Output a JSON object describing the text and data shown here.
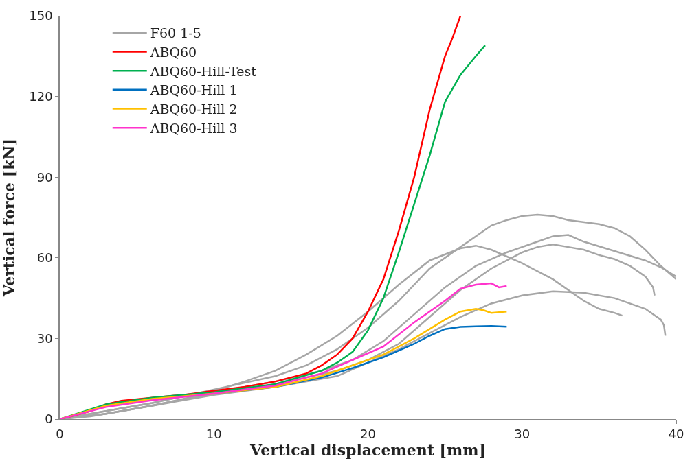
{
  "chart_data": {
    "type": "line",
    "xlabel": "Vertical displacement [mm]",
    "ylabel": "Vertical force [kN]",
    "xlim": [
      0,
      40
    ],
    "ylim": [
      0,
      150
    ],
    "xticks": [
      0,
      10,
      20,
      30,
      40
    ],
    "yticks": [
      0,
      30,
      60,
      90,
      120,
      150
    ],
    "legend": "top left",
    "marker": "none",
    "line_style": "solid",
    "series": [
      {
        "name": "F60 1-5",
        "color": "#a6a6a6",
        "x": [
          0,
          2,
          4,
          6,
          8,
          10,
          12,
          14,
          16,
          18,
          20,
          22,
          24,
          26,
          27,
          28,
          30,
          32,
          34,
          35,
          36,
          36.5
        ],
        "values": [
          0,
          2,
          4,
          6,
          8.5,
          10.5,
          14,
          18,
          24,
          31,
          40,
          50,
          59,
          63.5,
          64.5,
          63,
          58,
          52,
          44,
          41,
          39.5,
          38.5
        ]
      },
      {
        "color": "#a6a6a6",
        "x": [
          0,
          3,
          6,
          10,
          14,
          16,
          18,
          20,
          22,
          24,
          26,
          27,
          28,
          29,
          30,
          31,
          32,
          33,
          35,
          36,
          37,
          38,
          39,
          40
        ],
        "values": [
          0,
          3,
          6,
          11,
          16,
          20,
          26,
          34,
          44,
          56,
          64,
          68,
          72,
          74,
          75.5,
          76,
          75.5,
          74,
          72.5,
          71,
          68,
          63,
          57,
          52
        ]
      },
      {
        "color": "#a6a6a6",
        "x": [
          0,
          3,
          6,
          10,
          14,
          17,
          19,
          21,
          23,
          25,
          27,
          29,
          30,
          31,
          32,
          33,
          34,
          36,
          38,
          39,
          40
        ],
        "values": [
          0,
          2,
          5,
          10,
          14,
          18,
          22,
          29,
          39,
          49,
          57,
          62,
          64,
          66,
          68,
          68.5,
          66,
          62.5,
          59,
          56.5,
          53
        ]
      },
      {
        "color": "#a6a6a6",
        "x": [
          0,
          2,
          5,
          10,
          14,
          18,
          20,
          22,
          24,
          26,
          28,
          30,
          31,
          32,
          33,
          34,
          35,
          36,
          37,
          38,
          38.5,
          38.6
        ],
        "values": [
          0,
          1,
          4,
          9.5,
          13,
          18,
          22,
          28,
          38,
          48,
          56,
          62,
          64,
          65,
          64,
          63,
          61,
          59.5,
          57,
          53,
          49,
          46
        ]
      },
      {
        "color": "#a6a6a6",
        "x": [
          0,
          3,
          6,
          10,
          14,
          18,
          20,
          22,
          24,
          26,
          28,
          30,
          32,
          34,
          36,
          38,
          39,
          39.2,
          39.3
        ],
        "values": [
          0,
          2,
          5,
          9,
          12,
          16,
          21,
          26,
          32,
          38,
          43,
          46,
          47.5,
          47,
          45,
          41,
          37,
          35,
          31
        ]
      },
      {
        "name": "ABQ60",
        "color": "#ff0000",
        "x": [
          0,
          2,
          3,
          4,
          6,
          8,
          10,
          12,
          14,
          16,
          17,
          18,
          19,
          20,
          21,
          22,
          23,
          24,
          25,
          25.5,
          26
        ],
        "values": [
          0,
          3,
          5.5,
          6.8,
          8,
          9,
          10.5,
          12,
          14,
          17,
          20,
          24,
          30,
          40,
          52,
          70,
          90,
          115,
          135,
          142,
          150
        ]
      },
      {
        "name": "ABQ60-Hill-Test",
        "color": "#00b050",
        "x": [
          0,
          3,
          6,
          10,
          14,
          17,
          18,
          19,
          20,
          21,
          22,
          23,
          24,
          25,
          26,
          27,
          27.6
        ],
        "values": [
          0,
          5.5,
          8,
          10,
          13,
          18,
          21,
          25,
          33,
          45,
          62,
          80,
          98,
          118,
          128,
          135,
          139
        ]
      },
      {
        "name": "ABQ60-Hill 1",
        "color": "#0070c0",
        "x": [
          10,
          14,
          17,
          19,
          21,
          23,
          24,
          25,
          26,
          27,
          28,
          29
        ],
        "values": [
          9.5,
          12,
          15.5,
          19,
          23,
          28,
          31,
          33.5,
          34.3,
          34.5,
          34.6,
          34.4
        ]
      },
      {
        "name": "ABQ60-Hill 2",
        "color": "#ffc000",
        "x": [
          0,
          3,
          6,
          10,
          14,
          17,
          19,
          21,
          23,
          25,
          26,
          27,
          27.5,
          28,
          29
        ],
        "values": [
          0,
          5,
          7.5,
          9.5,
          12,
          16,
          20,
          24,
          30,
          37,
          40,
          41,
          40.5,
          39.5,
          40
        ]
      },
      {
        "name": "ABQ60-Hill 3",
        "color": "#ff33cc",
        "x": [
          0,
          3,
          6,
          10,
          14,
          17,
          19,
          21,
          23,
          25,
          26,
          27,
          28,
          28.5,
          29
        ],
        "values": [
          0,
          4.5,
          7,
          9.5,
          12.5,
          17,
          22,
          27,
          36,
          44,
          48.5,
          50,
          50.5,
          49,
          49.5
        ]
      }
    ]
  }
}
